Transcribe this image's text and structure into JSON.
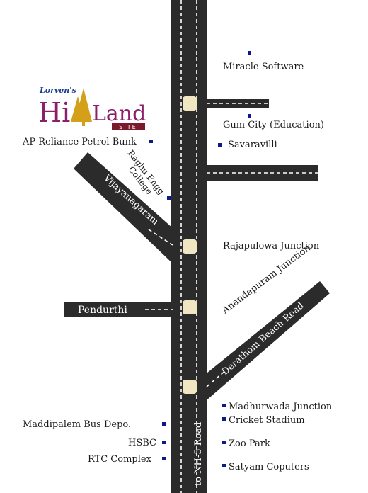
{
  "logo": {
    "brand": "Lorven's",
    "name_part1": "Hi",
    "name_part2": "Land",
    "tag": "SITE"
  },
  "roads": {
    "main": "to NH-5 Road",
    "vijayanagaram": "Vijayanagaram",
    "pendurthi": "Pendurthi",
    "anandapuram": "Anandapuram Junction",
    "derathom": "Derathom Beach Road"
  },
  "places": {
    "miracle_software": "Miracle Software",
    "gum_city": "Gum City (Education)",
    "savaravilli": "Savaravilli",
    "ap_reliance": "AP Reliance Petrol Bunk",
    "raghu_line1": "Raghu Engg.",
    "raghu_line2": "College",
    "rajapulowa": "Rajapulowa Junction",
    "madhurwada": "Madhurwada Junction",
    "cricket": "Cricket Stadium",
    "zoo": "Zoo Park",
    "satyam": "Satyam Coputers",
    "maddipalem": "Maddipalem Bus Depo.",
    "hsbc": "HSBC",
    "rtc": "RTC Complex"
  },
  "colors": {
    "road": "#2b2b2b",
    "junction": "#f0e6c2",
    "marker": "#0a1a8c",
    "logo_brand": "#1f3f8f",
    "logo_hi": "#8b1f6a",
    "logo_tree": "#d4a01a",
    "logo_tag_bg": "#7a1a2a"
  }
}
